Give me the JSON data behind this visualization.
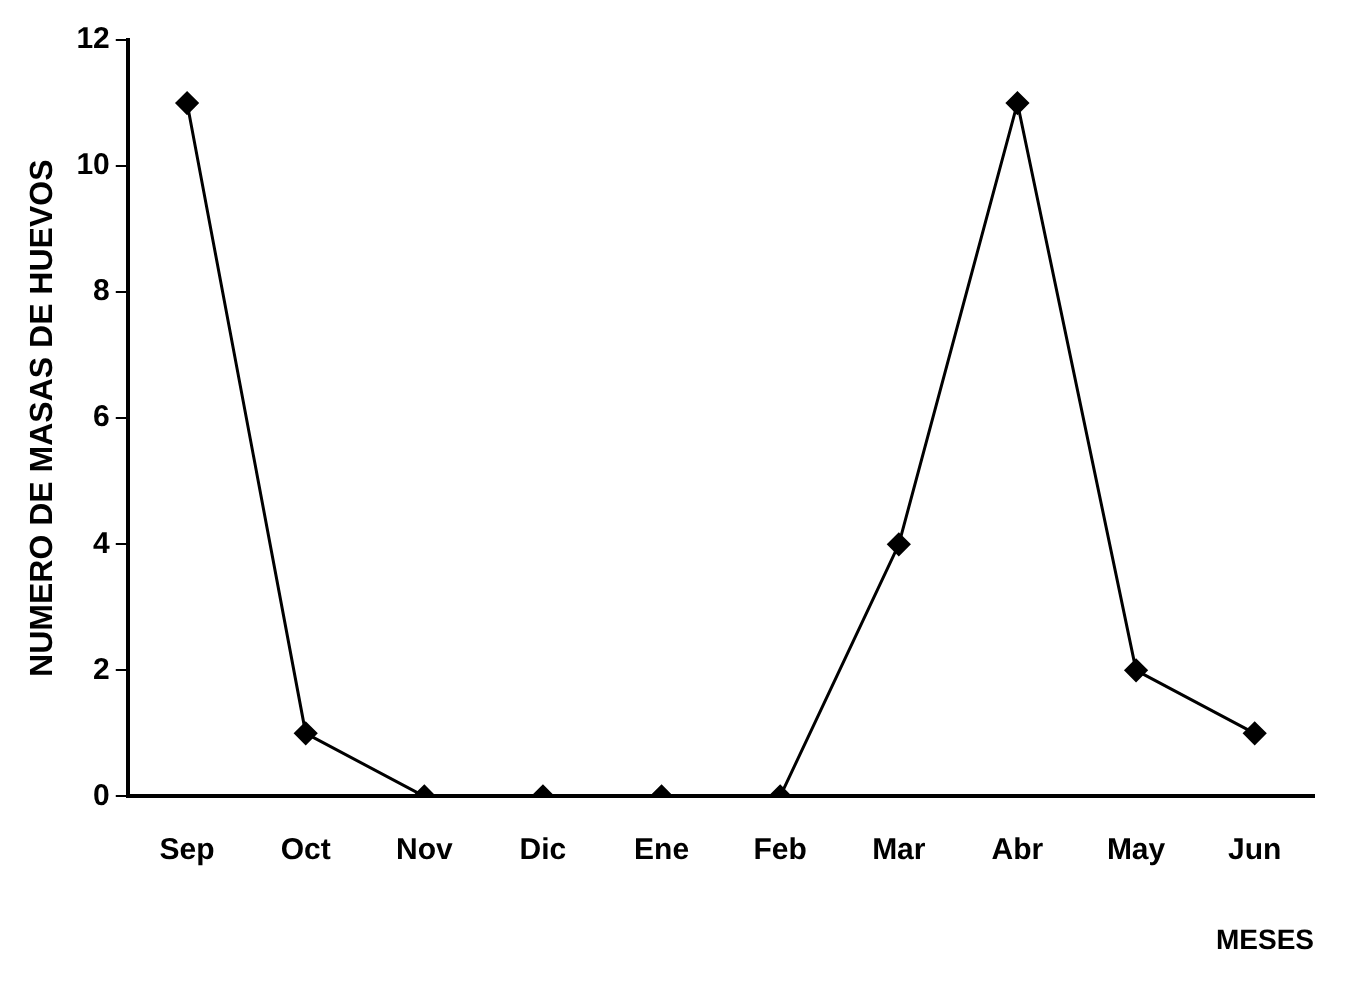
{
  "chart_data": {
    "type": "line",
    "xlabel": "MESES",
    "ylabel": "NUMERO DE MASAS DE HUEVOS",
    "categories": [
      "Sep",
      "Oct",
      "Nov",
      "Dic",
      "Ene",
      "Feb",
      "Mar",
      "Abr",
      "May",
      "Jun"
    ],
    "series": [
      {
        "color": "#000000",
        "values": [
          11,
          1,
          0,
          0,
          0,
          0,
          4,
          11,
          2,
          1
        ]
      }
    ],
    "ylim": [
      0,
      12
    ],
    "yticks": [
      0,
      2,
      4,
      6,
      8,
      10,
      12
    ],
    "grid": false,
    "legend": false,
    "marker": "diamond",
    "line_style": "solid"
  }
}
